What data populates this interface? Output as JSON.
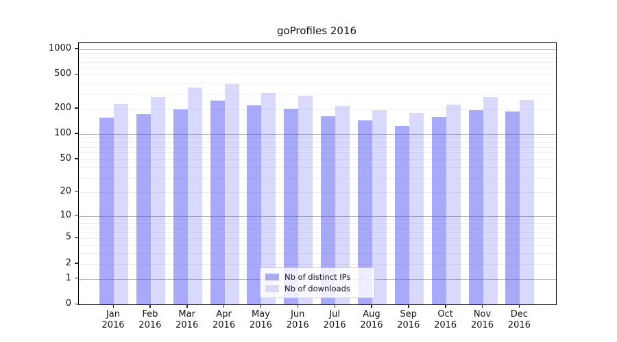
{
  "chart_data": {
    "type": "bar",
    "title": "goProfiles 2016",
    "categories": [
      "Jan 2016",
      "Feb 2016",
      "Mar 2016",
      "Apr 2016",
      "May 2016",
      "Jun 2016",
      "Jul 2016",
      "Aug 2016",
      "Sep 2016",
      "Oct 2016",
      "Nov 2016",
      "Dec 2016"
    ],
    "series": [
      {
        "name": "Nb of distinct IPs",
        "values": [
          157,
          172,
          196,
          249,
          216,
          197,
          163,
          146,
          125,
          160,
          190,
          186
        ]
      },
      {
        "name": "Nb of downloads",
        "values": [
          228,
          270,
          353,
          389,
          302,
          285,
          212,
          191,
          178,
          220,
          270,
          251
        ]
      }
    ],
    "xlabel": "",
    "ylabel": "",
    "yscale": "log1p",
    "yticks": [
      0,
      1,
      2,
      5,
      10,
      20,
      50,
      100,
      200,
      500,
      1000
    ],
    "ytick_majors": [
      1,
      10,
      100,
      1000
    ],
    "ylim": [
      0,
      1260
    ],
    "grid": "horizontal major+minor",
    "legend_position": "inside lower-center"
  },
  "colors": {
    "bar_ips": "rgba(80,80,245,0.49)",
    "bar_downloads": "rgba(80,80,245,0.22)",
    "legend_swatch_ips": "#a9a9f0",
    "legend_swatch_downloads": "#d9d9f8",
    "grid_major": "#b5b5b5",
    "grid_minor": "#ededed"
  }
}
